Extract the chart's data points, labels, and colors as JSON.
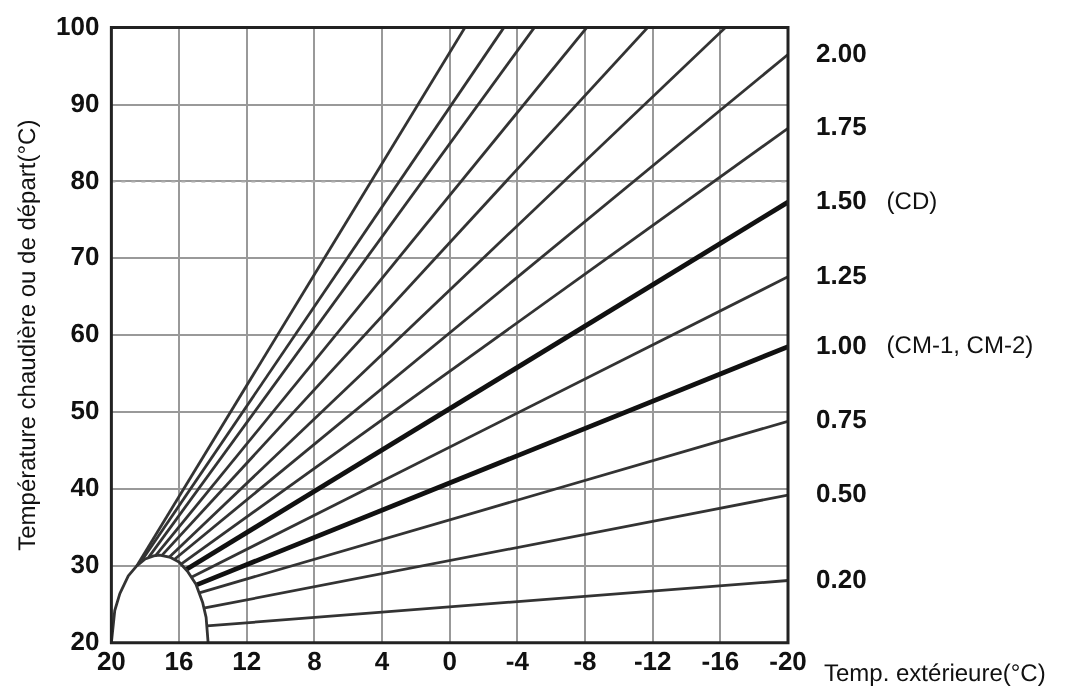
{
  "chart_data": {
    "type": "line",
    "xlabel": "Temp. extérieure(°C)",
    "ylabel": "Température chaudière ou de départ(°C)",
    "xlim": [
      20,
      -20
    ],
    "xticks": [
      20,
      16,
      12,
      8,
      4,
      0,
      -4,
      -8,
      -12,
      -16,
      -20
    ],
    "ylim": [
      20,
      100
    ],
    "yticks": [
      20,
      30,
      40,
      50,
      60,
      70,
      80,
      90,
      100
    ],
    "grid": true,
    "legend": false,
    "marker": "none",
    "line_style": "solid",
    "ref_lines": [
      {
        "axis": "y",
        "value": 80,
        "color": "#aaaaaa",
        "line_style": "dotted"
      }
    ],
    "series": [
      {
        "color": "#333333",
        "x": [
          20,
          19.8,
          19.5,
          19,
          18.5,
          18,
          17.5,
          17.14,
          16.5,
          16,
          15.5,
          15,
          14.6,
          14.4,
          14.28
        ],
        "values": [
          20,
          24.2,
          26.4,
          28.7,
          30,
          30.9,
          31.3,
          31.4,
          31.1,
          30.5,
          29.3,
          27.6,
          25.2,
          23.3,
          20
        ]
      },
      {
        "name": "0.20",
        "color": "#333333",
        "x": [
          14.35,
          -20
        ],
        "values": [
          22.2,
          28.1
        ]
      },
      {
        "name": "0.50",
        "color": "#333333",
        "x": [
          14.55,
          -20
        ],
        "values": [
          24.5,
          39.2
        ]
      },
      {
        "name": "0.75",
        "color": "#333333",
        "x": [
          14.8,
          -20
        ],
        "values": [
          26.5,
          48.8
        ]
      },
      {
        "name": "1.00 (CM-1, CM-2)",
        "color": "#111111",
        "x": [
          15,
          -20
        ],
        "values": [
          27.5,
          58.5
        ]
      },
      {
        "name": "1.25",
        "color": "#333333",
        "x": [
          15.3,
          -20
        ],
        "values": [
          28.5,
          67.6
        ]
      },
      {
        "name": "1.50 (CD)",
        "color": "#111111",
        "x": [
          15.6,
          -20
        ],
        "values": [
          29.5,
          77.3
        ]
      },
      {
        "name": "1.75",
        "color": "#333333",
        "x": [
          15.9,
          -20
        ],
        "values": [
          30.2,
          86.9
        ]
      },
      {
        "name": "2.00",
        "color": "#333333",
        "x": [
          16.3,
          -20
        ],
        "values": [
          30.8,
          96.5
        ]
      },
      {
        "color": "#333333",
        "x": [
          16.6,
          -16.3
        ],
        "values": [
          31.1,
          100
        ]
      },
      {
        "color": "#333333",
        "x": [
          17,
          -11.7
        ],
        "values": [
          31.4,
          100
        ]
      },
      {
        "color": "#333333",
        "x": [
          17.4,
          -8.1
        ],
        "values": [
          31.3,
          100
        ]
      },
      {
        "color": "#333333",
        "x": [
          17.8,
          -5
        ],
        "values": [
          31.1,
          100
        ]
      },
      {
        "color": "#333333",
        "x": [
          18.2,
          -3.2
        ],
        "values": [
          30.7,
          100
        ]
      },
      {
        "color": "#333333",
        "x": [
          18.5,
          -0.9
        ],
        "values": [
          30,
          100
        ]
      }
    ]
  }
}
